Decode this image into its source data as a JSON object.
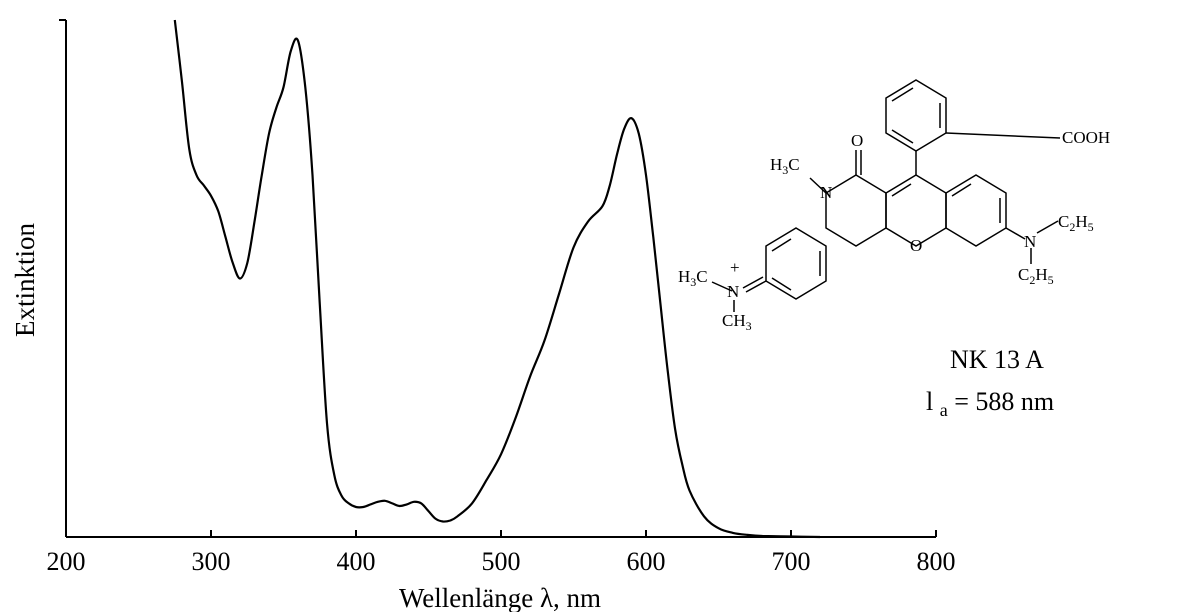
{
  "chart_data": {
    "type": "line",
    "xlabel": "Wellenlänge λ, nm",
    "ylabel": "Extinktion",
    "xlim": [
      200,
      800
    ],
    "ylim": [
      0,
      1.0
    ],
    "x_ticks": [
      200,
      300,
      400,
      500,
      600,
      700,
      800
    ],
    "y_ticks_labeled": false,
    "grid": false,
    "series": [
      {
        "x": [
          275,
          280,
          285,
          290,
          295,
          300,
          305,
          310,
          315,
          320,
          325,
          330,
          335,
          340,
          345,
          350,
          355,
          360,
          365,
          370,
          375,
          380,
          385,
          390,
          395,
          400,
          405,
          410,
          415,
          420,
          425,
          430,
          435,
          440,
          445,
          450,
          455,
          460,
          465,
          470,
          480,
          490,
          500,
          510,
          520,
          530,
          540,
          550,
          560,
          570,
          575,
          580,
          585,
          590,
          595,
          600,
          605,
          610,
          615,
          620,
          625,
          630,
          640,
          650,
          660,
          670,
          680,
          700,
          720
        ],
        "y": [
          1.0,
          0.88,
          0.75,
          0.7,
          0.68,
          0.66,
          0.63,
          0.58,
          0.53,
          0.5,
          0.53,
          0.61,
          0.7,
          0.78,
          0.83,
          0.87,
          0.94,
          0.96,
          0.87,
          0.7,
          0.45,
          0.22,
          0.12,
          0.08,
          0.065,
          0.058,
          0.058,
          0.063,
          0.068,
          0.07,
          0.065,
          0.06,
          0.063,
          0.068,
          0.065,
          0.05,
          0.035,
          0.03,
          0.032,
          0.04,
          0.065,
          0.11,
          0.16,
          0.23,
          0.31,
          0.38,
          0.47,
          0.56,
          0.61,
          0.64,
          0.68,
          0.74,
          0.79,
          0.81,
          0.78,
          0.7,
          0.58,
          0.45,
          0.32,
          0.21,
          0.14,
          0.09,
          0.04,
          0.017,
          0.008,
          0.004,
          0.002,
          0.001,
          0.0
        ]
      }
    ]
  },
  "structure": {
    "cooh": "COOH",
    "carbonyl_o": "O",
    "nitrogen": "N",
    "ring_o": "O",
    "plus": "+",
    "h3c_top": "H3C",
    "h3c_left": "H3C",
    "ch3_bottom": "CH3",
    "c2h5_top": "C2H5",
    "c2h5_bottom": "C2H5"
  },
  "caption": {
    "name": "NK 13 A",
    "lambda_label": "l",
    "lambda_sub": "a",
    "lambda_value": " = 588 nm"
  }
}
